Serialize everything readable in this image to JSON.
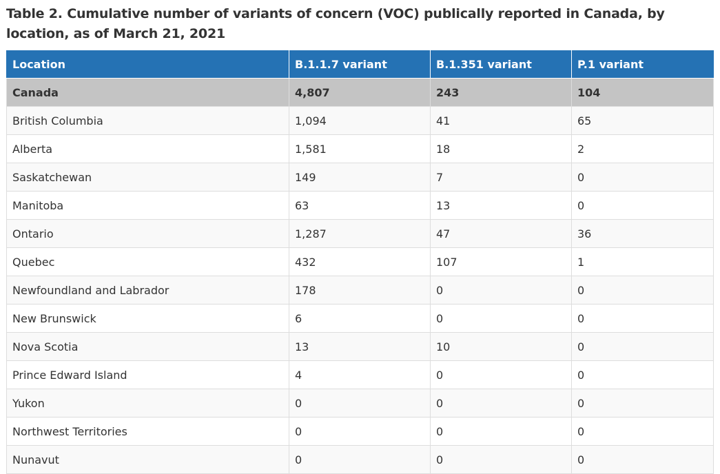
{
  "caption": "Table 2. Cumulative number of variants of concern (VOC) publically reported in Canada, by location, as of March 21, 2021",
  "table": {
    "headers": [
      "Location",
      "B.1.1.7 variant",
      "B.1.351 variant",
      "P.1 variant"
    ],
    "total": {
      "location": "Canada",
      "b117": "4,807",
      "b1351": "243",
      "p1": "104"
    },
    "rows": [
      {
        "location": "British Columbia",
        "b117": "1,094",
        "b1351": "41",
        "p1": "65"
      },
      {
        "location": "Alberta",
        "b117": "1,581",
        "b1351": "18",
        "p1": "2"
      },
      {
        "location": "Saskatchewan",
        "b117": "149",
        "b1351": "7",
        "p1": "0"
      },
      {
        "location": "Manitoba",
        "b117": "63",
        "b1351": "13",
        "p1": "0"
      },
      {
        "location": "Ontario",
        "b117": "1,287",
        "b1351": "47",
        "p1": "36"
      },
      {
        "location": "Quebec",
        "b117": "432",
        "b1351": "107",
        "p1": "1"
      },
      {
        "location": "Newfoundland and Labrador",
        "b117": "178",
        "b1351": "0",
        "p1": "0"
      },
      {
        "location": "New Brunswick",
        "b117": "6",
        "b1351": "0",
        "p1": "0"
      },
      {
        "location": "Nova Scotia",
        "b117": "13",
        "b1351": "10",
        "p1": "0"
      },
      {
        "location": "Prince Edward Island",
        "b117": "4",
        "b1351": "0",
        "p1": "0"
      },
      {
        "location": "Yukon",
        "b117": "0",
        "b1351": "0",
        "p1": "0"
      },
      {
        "location": "Northwest Territories",
        "b117": "0",
        "b1351": "0",
        "p1": "0"
      },
      {
        "location": "Nunavut",
        "b117": "0",
        "b1351": "0",
        "p1": "0"
      }
    ]
  },
  "colors": {
    "header_bg": "#2572b4",
    "total_row_bg": "#c4c4c4",
    "stripe_bg": "#f9f9f9",
    "border": "#dddddd"
  }
}
